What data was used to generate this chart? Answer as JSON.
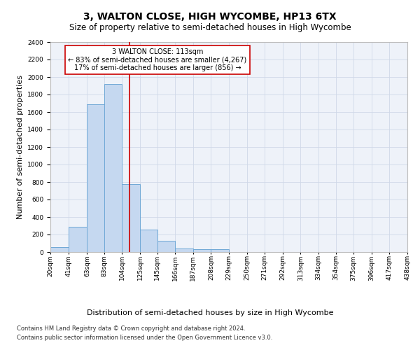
{
  "title": "3, WALTON CLOSE, HIGH WYCOMBE, HP13 6TX",
  "subtitle": "Size of property relative to semi-detached houses in High Wycombe",
  "xlabel": "Distribution of semi-detached houses by size in High Wycombe",
  "ylabel": "Number of semi-detached properties",
  "footnote1": "Contains HM Land Registry data © Crown copyright and database right 2024.",
  "footnote2": "Contains public sector information licensed under the Open Government Licence v3.0.",
  "bar_values": [
    60,
    290,
    1690,
    1920,
    780,
    255,
    130,
    40,
    35,
    30,
    0,
    0,
    0,
    0,
    0,
    0,
    0,
    0,
    0,
    0
  ],
  "bar_color": "#c5d8f0",
  "bar_edge_color": "#6fa8d6",
  "bin_edges": [
    20,
    41,
    63,
    83,
    104,
    125,
    145,
    166,
    187,
    208,
    229,
    250,
    271,
    292,
    313,
    334,
    354,
    375,
    396,
    417,
    438
  ],
  "tick_labels": [
    "20sqm",
    "41sqm",
    "63sqm",
    "83sqm",
    "104sqm",
    "125sqm",
    "145sqm",
    "166sqm",
    "187sqm",
    "208sqm",
    "229sqm",
    "250sqm",
    "271sqm",
    "292sqm",
    "313sqm",
    "334sqm",
    "354sqm",
    "375sqm",
    "396sqm",
    "417sqm",
    "438sqm"
  ],
  "ylim": [
    0,
    2400
  ],
  "yticks": [
    0,
    200,
    400,
    600,
    800,
    1000,
    1200,
    1400,
    1600,
    1800,
    2000,
    2200,
    2400
  ],
  "property_size": 113,
  "red_line_color": "#cc0000",
  "annotation_title": "3 WALTON CLOSE: 113sqm",
  "annotation_line1": "← 83% of semi-detached houses are smaller (4,267)",
  "annotation_line2": "17% of semi-detached houses are larger (856) →",
  "annotation_box_color": "#cc0000",
  "grid_color": "#d0d8e8",
  "background_color": "#eef2f9",
  "title_fontsize": 10,
  "subtitle_fontsize": 8.5,
  "tick_fontsize": 6.5,
  "ylabel_fontsize": 8,
  "xlabel_fontsize": 8,
  "annotation_fontsize": 7
}
